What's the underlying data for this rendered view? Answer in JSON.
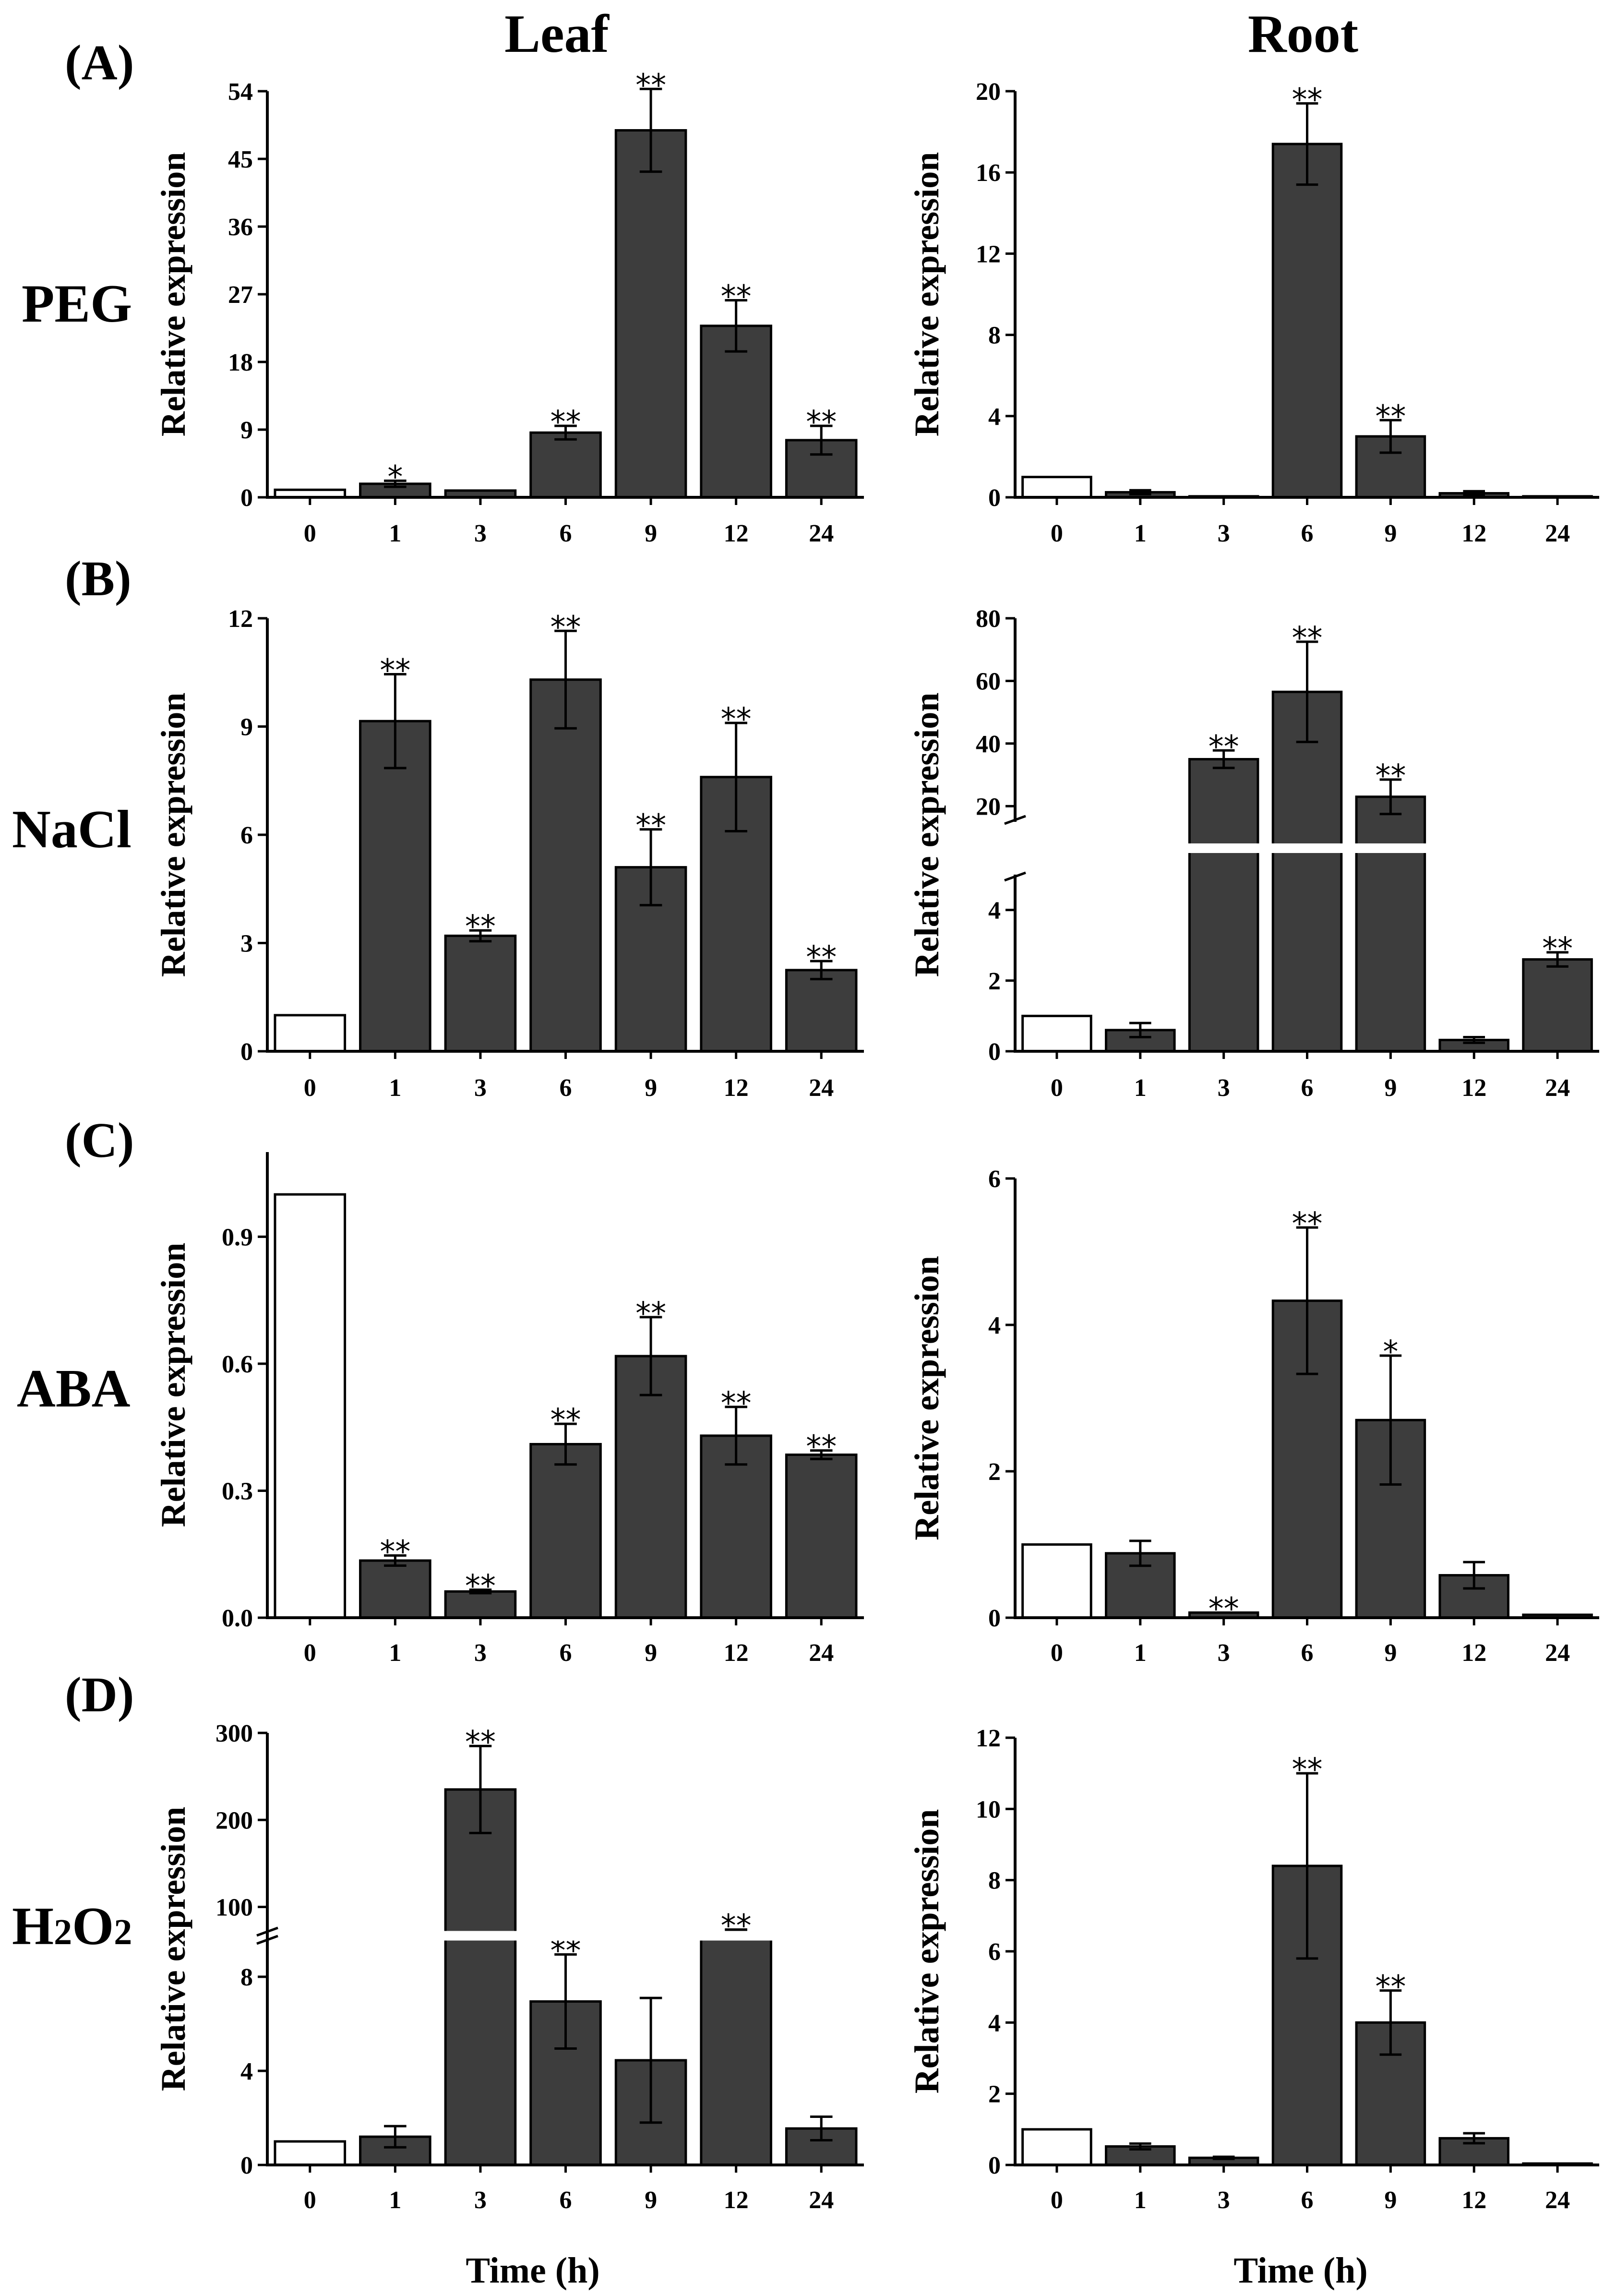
{
  "figure": {
    "col_titles": [
      "Leaf",
      "Root"
    ],
    "xlabel": "Time (h)",
    "ylabel": "Relative expression",
    "panel_letters": [
      "(A)",
      "(B)",
      "(C)",
      "(D)"
    ],
    "row_labels": [
      {
        "main": "PEG"
      },
      {
        "main": "NaCl"
      },
      {
        "main": "ABA"
      },
      {
        "main": "H",
        "sub1": "2",
        "mid": "O",
        "sub2": "2"
      }
    ],
    "colors": {
      "control": "#ffffff",
      "treated": "#3d3d3d",
      "axis": "#000000",
      "break": "#ffffff"
    }
  },
  "chart_data": [
    {
      "id": "A-leaf",
      "type": "bar",
      "treatment": "PEG",
      "tissue": "Leaf",
      "xlabel": "",
      "ylabel": "Relative expression",
      "categories": [
        "0",
        "1",
        "3",
        "6",
        "9",
        "12",
        "24"
      ],
      "values": [
        1.0,
        1.8,
        0.9,
        8.6,
        48.8,
        22.8,
        7.6
      ],
      "errors": [
        0,
        0.4,
        0,
        0.9,
        5.5,
        3.4,
        1.9
      ],
      "significance": [
        "",
        "*",
        "",
        "**",
        "**",
        "**",
        "**"
      ],
      "ylim": [
        0,
        54
      ],
      "yticks": [
        "0",
        "9",
        "18",
        "27",
        "36",
        "45",
        "54"
      ]
    },
    {
      "id": "A-root",
      "type": "bar",
      "treatment": "PEG",
      "tissue": "Root",
      "xlabel": "",
      "ylabel": "Relative expression",
      "categories": [
        "0",
        "1",
        "3",
        "6",
        "9",
        "12",
        "24"
      ],
      "values": [
        1.0,
        0.25,
        0.05,
        17.4,
        3.0,
        0.2,
        0.05
      ],
      "errors": [
        0,
        0.1,
        0,
        2.0,
        0.8,
        0.1,
        0
      ],
      "significance": [
        "",
        "",
        "",
        "**",
        "**",
        "",
        ""
      ],
      "ylim": [
        0,
        20
      ],
      "yticks": [
        "0",
        "4",
        "8",
        "12",
        "16",
        "20"
      ]
    },
    {
      "id": "B-leaf",
      "type": "bar",
      "treatment": "NaCl",
      "tissue": "Leaf",
      "xlabel": "",
      "ylabel": "Relative expression",
      "categories": [
        "0",
        "1",
        "3",
        "6",
        "9",
        "12",
        "24"
      ],
      "values": [
        1.0,
        9.15,
        3.2,
        10.3,
        5.1,
        7.6,
        2.25
      ],
      "errors": [
        0,
        1.3,
        0.15,
        1.35,
        1.05,
        1.5,
        0.25
      ],
      "significance": [
        "",
        "**",
        "**",
        "**",
        "**",
        "**",
        "**"
      ],
      "ylim": [
        0,
        12
      ],
      "yticks": [
        "0",
        "3",
        "6",
        "9",
        "12"
      ]
    },
    {
      "id": "B-root",
      "type": "bar",
      "treatment": "NaCl",
      "tissue": "Root",
      "xlabel": "",
      "ylabel": "Relative expression",
      "categories": [
        "0",
        "1",
        "3",
        "6",
        "9",
        "12",
        "24"
      ],
      "values": [
        1.0,
        0.6,
        35,
        56.5,
        23,
        0.32,
        2.6
      ],
      "errors": [
        0,
        0.2,
        2.8,
        16,
        5.5,
        0.08,
        0.2
      ],
      "significance": [
        "",
        "",
        "**",
        "**",
        "**",
        "",
        "**"
      ],
      "axis_break": {
        "lower": [
          0,
          5
        ],
        "upper": [
          15,
          80
        ]
      },
      "yticks": [
        "0",
        "2",
        "4",
        "20",
        "40",
        "60",
        "80"
      ]
    },
    {
      "id": "C-leaf",
      "type": "bar",
      "treatment": "ABA",
      "tissue": "Leaf",
      "xlabel": "",
      "ylabel": "Relative expression",
      "categories": [
        "0",
        "1",
        "3",
        "6",
        "9",
        "12",
        "24"
      ],
      "values": [
        1.0,
        0.135,
        0.062,
        0.41,
        0.618,
        0.43,
        0.385
      ],
      "errors": [
        0,
        0.012,
        0.004,
        0.048,
        0.092,
        0.068,
        0.01
      ],
      "significance": [
        "",
        "**",
        "**",
        "**",
        "**",
        "**",
        "**"
      ],
      "ylim": [
        0,
        1.1
      ],
      "yticks": [
        "0.0",
        "0.3",
        "0.6",
        "0.9"
      ]
    },
    {
      "id": "C-root",
      "type": "bar",
      "treatment": "ABA",
      "tissue": "Root",
      "xlabel": "",
      "ylabel": "Relative expression",
      "categories": [
        "0",
        "1",
        "3",
        "6",
        "9",
        "12",
        "24"
      ],
      "values": [
        1.0,
        0.88,
        0.07,
        4.33,
        2.7,
        0.58,
        0.04
      ],
      "errors": [
        0,
        0.17,
        0,
        1.0,
        0.88,
        0.18,
        0
      ],
      "significance": [
        "",
        "",
        "**",
        "**",
        "*",
        "",
        ""
      ],
      "ylim": [
        0,
        6
      ],
      "yticks": [
        "0",
        "2",
        "4",
        "6"
      ]
    },
    {
      "id": "D-leaf",
      "type": "bar",
      "treatment": "H2O2",
      "tissue": "Leaf",
      "xlabel": "Time (h)",
      "ylabel": "Relative expression",
      "categories": [
        "0",
        "1",
        "3",
        "6",
        "9",
        "12",
        "24"
      ],
      "values": [
        1.0,
        1.2,
        235,
        6.95,
        4.45,
        65,
        1.55
      ],
      "errors": [
        0,
        0.45,
        50,
        2.0,
        2.65,
        9,
        0.5
      ],
      "significance": [
        "",
        "",
        "**",
        "**",
        "",
        "**",
        ""
      ],
      "axis_break": {
        "lower": [
          0,
          10
        ],
        "upper": [
          60,
          300
        ]
      },
      "yticks": [
        "0",
        "4",
        "8",
        "100",
        "200",
        "300"
      ]
    },
    {
      "id": "D-root",
      "type": "bar",
      "treatment": "H2O2",
      "tissue": "Root",
      "xlabel": "Time (h)",
      "ylabel": "Relative expression",
      "categories": [
        "0",
        "1",
        "3",
        "6",
        "9",
        "12",
        "24"
      ],
      "values": [
        1.0,
        0.52,
        0.2,
        8.4,
        4.0,
        0.75,
        0.04
      ],
      "errors": [
        0,
        0.08,
        0.03,
        2.6,
        0.9,
        0.14,
        0
      ],
      "significance": [
        "",
        "",
        "",
        "**",
        "**",
        "",
        ""
      ],
      "ylim": [
        0,
        12
      ],
      "yticks": [
        "0",
        "2",
        "4",
        "6",
        "8",
        "10",
        "12"
      ]
    }
  ]
}
